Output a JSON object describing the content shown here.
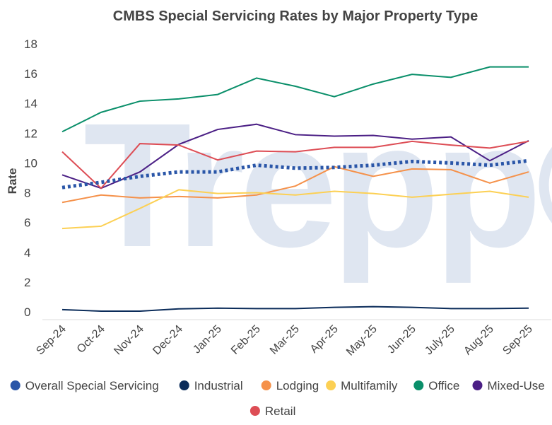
{
  "chart_data": {
    "type": "line",
    "title": "CMBS Special Servicing Rates by Major Property Type",
    "xlabel": "",
    "ylabel": "Rate",
    "ylim": [
      0,
      18
    ],
    "yticks": [
      0,
      2,
      4,
      6,
      8,
      10,
      12,
      14,
      16,
      18
    ],
    "grid": false,
    "legend_position": "bottom",
    "watermark": "Trepp®",
    "categories": [
      "Sep-24",
      "Oct-24",
      "Nov-24",
      "Dec-24",
      "Jan-25",
      "Feb-25",
      "Mar-25",
      "Apr-25",
      "May-25",
      "Jun-25",
      "July-25",
      "Aug-25",
      "Sep-25"
    ],
    "series": [
      {
        "name": "Overall Special Servicing",
        "color": "#2a56a8",
        "dotted": true,
        "values": [
          8.35,
          8.7,
          9.1,
          9.4,
          9.4,
          9.85,
          9.65,
          9.7,
          9.85,
          10.1,
          10.0,
          9.85,
          10.15
        ]
      },
      {
        "name": "Industrial",
        "color": "#0b2c5a",
        "values": [
          0.15,
          0.05,
          0.05,
          0.2,
          0.25,
          0.22,
          0.22,
          0.3,
          0.35,
          0.3,
          0.22,
          0.22,
          0.25
        ]
      },
      {
        "name": "Lodging",
        "color": "#f5914a",
        "values": [
          7.35,
          7.85,
          7.65,
          7.75,
          7.65,
          7.85,
          8.45,
          9.75,
          9.1,
          9.6,
          9.55,
          8.65,
          9.4
        ]
      },
      {
        "name": "Multifamily",
        "color": "#fcd054",
        "values": [
          5.6,
          5.75,
          6.95,
          8.2,
          7.95,
          8.0,
          7.85,
          8.1,
          7.95,
          7.7,
          7.9,
          8.1,
          7.7
        ]
      },
      {
        "name": "Office",
        "color": "#0a8f6a",
        "values": [
          12.1,
          13.4,
          14.15,
          14.3,
          14.6,
          15.7,
          15.15,
          14.45,
          15.3,
          15.95,
          15.75,
          16.45,
          16.45
        ]
      },
      {
        "name": "Mixed-Use",
        "color": "#4b1f85",
        "values": [
          9.2,
          8.3,
          9.4,
          11.25,
          12.25,
          12.6,
          11.9,
          11.8,
          11.85,
          11.6,
          11.75,
          10.15,
          11.5
        ]
      },
      {
        "name": "Retail",
        "color": "#dd4d55",
        "values": [
          10.75,
          8.3,
          11.3,
          11.2,
          10.2,
          10.8,
          10.75,
          11.05,
          11.05,
          11.45,
          11.2,
          11.0,
          11.45
        ]
      }
    ]
  }
}
